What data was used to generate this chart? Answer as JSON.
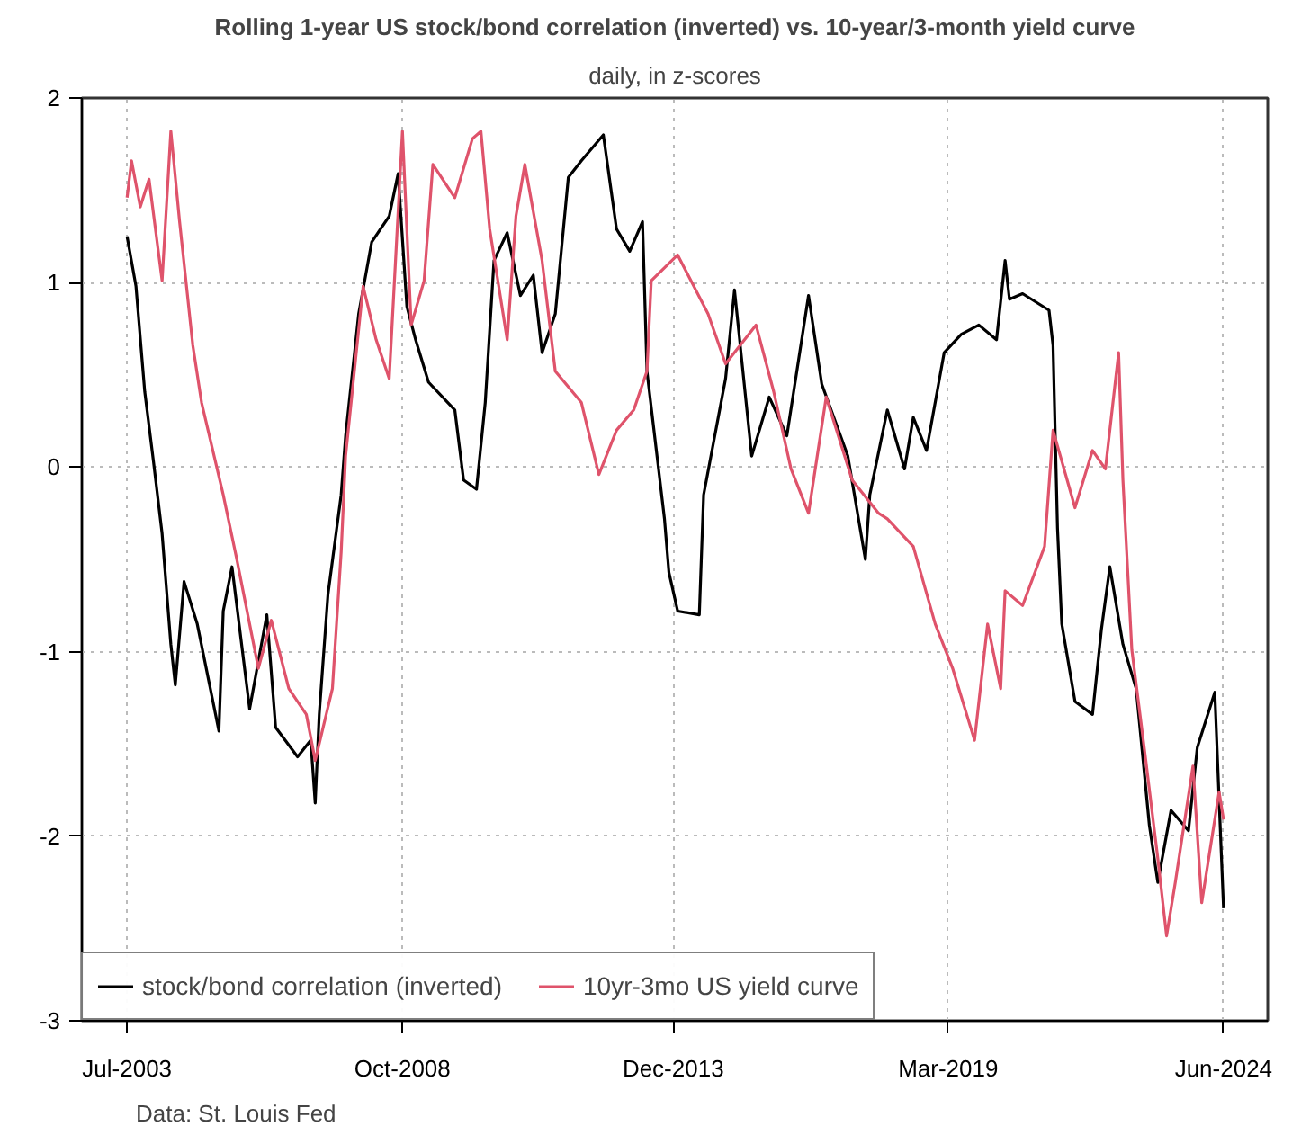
{
  "chart_data": {
    "type": "line",
    "title": "Rolling 1-year US stock/bond correlation (inverted) vs. 10-year/3-month yield curve",
    "subtitle": "daily, in z-scores",
    "annotations": [
      "Data: St. Louis Fed"
    ],
    "xlim": [
      "2002-08-20",
      "2025-04-05"
    ],
    "ylim": [
      -3,
      2
    ],
    "xticks": [
      {
        "value": "2003-07-01",
        "label": "Jul-2003"
      },
      {
        "value": "2008-10-01",
        "label": "Oct-2008"
      },
      {
        "value": "2013-12-01",
        "label": "Dec-2013"
      },
      {
        "value": "2019-03-01",
        "label": "Mar-2019"
      },
      {
        "value": "2024-06-01",
        "label": "Jun-2024"
      }
    ],
    "yticks": [
      -3,
      -2,
      -1,
      0,
      1,
      2
    ],
    "grid": true,
    "legend": "bottom left",
    "line_style": "solid",
    "series": [
      {
        "name": "stock/bond correlation (inverted)",
        "color": "#000000",
        "x": [
          "2003-07",
          "2003-09",
          "2003-11",
          "2004-01",
          "2004-03",
          "2004-05",
          "2004-06",
          "2004-08",
          "2004-11",
          "2005-04",
          "2005-05",
          "2005-07",
          "2005-11",
          "2006-03",
          "2006-05",
          "2006-10",
          "2007-01",
          "2007-02",
          "2007-03",
          "2007-05",
          "2007-08",
          "2007-09",
          "2007-12",
          "2008-03",
          "2008-07",
          "2008-09",
          "2008-11",
          "2009-01",
          "2009-04",
          "2009-10",
          "2009-12",
          "2010-03",
          "2010-05",
          "2010-07",
          "2010-10",
          "2011-01",
          "2011-04",
          "2011-06",
          "2011-09",
          "2011-12",
          "2012-03",
          "2012-08",
          "2012-11",
          "2013-02",
          "2013-05",
          "2013-06",
          "2013-10",
          "2013-11",
          "2014-01",
          "2014-06",
          "2014-07",
          "2014-12",
          "2015-02",
          "2015-06",
          "2015-10",
          "2016-02",
          "2016-07",
          "2016-10",
          "2017-04",
          "2017-08",
          "2017-09",
          "2018-01",
          "2018-05",
          "2018-07",
          "2018-10",
          "2019-02",
          "2019-06",
          "2019-10",
          "2020-02",
          "2020-04",
          "2020-05",
          "2020-08",
          "2021-02",
          "2021-03",
          "2021-04",
          "2021-05",
          "2021-08",
          "2021-12",
          "2022-02",
          "2022-04",
          "2022-07",
          "2022-10",
          "2023-01",
          "2023-03",
          "2023-06",
          "2023-10",
          "2023-12",
          "2024-04",
          "2024-05",
          "2024-06"
        ],
        "values": [
          1.25,
          0.98,
          0.41,
          0.03,
          -0.36,
          -0.96,
          -1.18,
          -0.62,
          -0.85,
          -1.43,
          -0.78,
          -0.54,
          -1.31,
          -0.8,
          -1.41,
          -1.57,
          -1.48,
          -1.82,
          -1.34,
          -0.69,
          -0.15,
          0.17,
          0.83,
          1.22,
          1.36,
          1.59,
          0.87,
          0.69,
          0.46,
          0.31,
          -0.07,
          -0.12,
          0.35,
          1.12,
          1.27,
          0.93,
          1.04,
          0.62,
          0.83,
          1.57,
          1.66,
          1.8,
          1.29,
          1.17,
          1.33,
          0.52,
          -0.28,
          -0.57,
          -0.78,
          -0.8,
          -0.15,
          0.48,
          0.96,
          0.06,
          0.38,
          0.17,
          0.93,
          0.45,
          0.06,
          -0.5,
          -0.15,
          0.31,
          -0.01,
          0.27,
          0.09,
          0.62,
          0.72,
          0.77,
          0.69,
          1.12,
          0.91,
          0.94,
          0.85,
          0.66,
          -0.33,
          -0.85,
          -1.27,
          -1.34,
          -0.88,
          -0.54,
          -0.96,
          -1.2,
          -1.94,
          -2.25,
          -1.86,
          -1.97,
          -1.52,
          -1.22,
          -1.8,
          -2.39
        ]
      },
      {
        "name": "10yr-3mo US yield curve",
        "color": "#df536b",
        "x": [
          "2003-07",
          "2003-08",
          "2003-10",
          "2003-12",
          "2004-03",
          "2004-05",
          "2004-07",
          "2004-10",
          "2004-12",
          "2005-05",
          "2005-08",
          "2006-01",
          "2006-04",
          "2006-08",
          "2006-12",
          "2007-02",
          "2007-06",
          "2007-08",
          "2007-09",
          "2008-01",
          "2008-04",
          "2008-07",
          "2008-10",
          "2008-12",
          "2009-03",
          "2009-05",
          "2009-10",
          "2010-02",
          "2010-04",
          "2010-06",
          "2010-10",
          "2010-12",
          "2011-02",
          "2011-06",
          "2011-09",
          "2012-03",
          "2012-07",
          "2012-11",
          "2013-03",
          "2013-06",
          "2013-07",
          "2014-01",
          "2014-08",
          "2014-12",
          "2015-07",
          "2015-11",
          "2016-03",
          "2016-07",
          "2016-11",
          "2017-05",
          "2017-11",
          "2018-01",
          "2018-07",
          "2018-12",
          "2019-04",
          "2019-09",
          "2019-12",
          "2020-03",
          "2020-04",
          "2020-08",
          "2021-01",
          "2021-03",
          "2021-08",
          "2021-12",
          "2022-03",
          "2022-06",
          "2022-07",
          "2022-09",
          "2022-12",
          "2023-03",
          "2023-05",
          "2023-07",
          "2023-11",
          "2024-01",
          "2024-05",
          "2024-06"
        ],
        "values": [
          1.46,
          1.66,
          1.41,
          1.56,
          1.01,
          1.82,
          1.33,
          0.66,
          0.35,
          -0.15,
          -0.49,
          -1.09,
          -0.83,
          -1.2,
          -1.34,
          -1.59,
          -1.2,
          -0.46,
          0.06,
          0.98,
          0.69,
          0.48,
          1.82,
          0.77,
          1.01,
          1.64,
          1.46,
          1.78,
          1.82,
          1.29,
          0.69,
          1.36,
          1.64,
          1.12,
          0.52,
          0.35,
          -0.04,
          0.2,
          0.31,
          0.52,
          1.01,
          1.15,
          0.83,
          0.56,
          0.77,
          0.41,
          -0.01,
          -0.25,
          0.38,
          -0.07,
          -0.25,
          -0.28,
          -0.43,
          -0.85,
          -1.09,
          -1.48,
          -0.85,
          -1.2,
          -0.67,
          -0.75,
          -0.43,
          0.2,
          -0.22,
          0.09,
          -0.01,
          0.62,
          -0.07,
          -0.99,
          -1.55,
          -2.12,
          -2.54,
          -2.25,
          -1.62,
          -2.36,
          -1.76,
          -1.91
        ]
      }
    ]
  }
}
